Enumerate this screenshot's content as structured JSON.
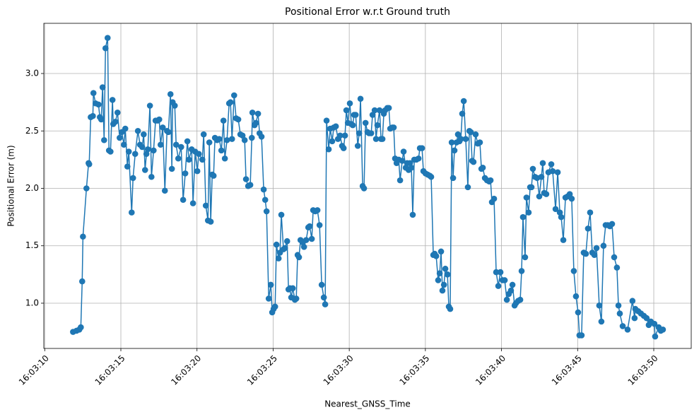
{
  "chart_data": {
    "type": "line",
    "title": "Positional Error w.r.t Ground truth",
    "x_label": "Nearest_GNSS_Time",
    "y_label": "Positional Error (m)",
    "color": "#1f77b4",
    "grid": true,
    "xlim": [
      "16:03:09.94",
      "16:03:52.46"
    ],
    "xticks": [
      "16:03:10",
      "16:03:15",
      "16:03:20",
      "16:03:25",
      "16:03:30",
      "16:03:35",
      "16:03:40",
      "16:03:45",
      "16:03:50"
    ],
    "ylim": [
      0.606,
      3.437
    ],
    "yticks": [
      {
        "value": 1,
        "label": "1.0"
      },
      {
        "value": 1.5,
        "label": "1.5"
      },
      {
        "value": 2,
        "label": "2.0"
      },
      {
        "value": 2.5,
        "label": "2.5"
      },
      {
        "value": 3,
        "label": "3.0"
      }
    ],
    "x": [
      "16:03:11.86",
      "16:03:12.09",
      "16:03:12.27",
      "16:03:12.37",
      "16:03:12.46",
      "16:03:12.51",
      "16:03:12.74",
      "16:03:12.88",
      "16:03:12.92",
      "16:03:13.02",
      "16:03:13.16",
      "16:03:13.20",
      "16:03:13.34",
      "16:03:13.53",
      "16:03:13.62",
      "16:03:13.71",
      "16:03:13.80",
      "16:03:13.90",
      "16:03:13.99",
      "16:03:14.13",
      "16:03:14.22",
      "16:03:14.32",
      "16:03:14.45",
      "16:03:14.50",
      "16:03:14.64",
      "16:03:14.78",
      "16:03:14.92",
      "16:03:15.06",
      "16:03:15.20",
      "16:03:15.29",
      "16:03:15.43",
      "16:03:15.52",
      "16:03:15.71",
      "16:03:15.80",
      "16:03:15.94",
      "16:03:16.12",
      "16:03:16.26",
      "16:03:16.40",
      "16:03:16.50",
      "16:03:16.59",
      "16:03:16.68",
      "16:03:16.77",
      "16:03:16.91",
      "16:03:17.01",
      "16:03:17.15",
      "16:03:17.28",
      "16:03:17.42",
      "16:03:17.52",
      "16:03:17.61",
      "16:03:17.75",
      "16:03:17.89",
      "16:03:18.03",
      "16:03:18.12",
      "16:03:18.26",
      "16:03:18.35",
      "16:03:18.40",
      "16:03:18.54",
      "16:03:18.63",
      "16:03:18.77",
      "16:03:18.96",
      "16:03:19.09",
      "16:03:19.23",
      "16:03:19.37",
      "16:03:19.47",
      "16:03:19.65",
      "16:03:19.74",
      "16:03:19.88",
      "16:03:20.02",
      "16:03:20.12",
      "16:03:20.35",
      "16:03:20.44",
      "16:03:20.58",
      "16:03:20.72",
      "16:03:20.81",
      "16:03:20.90",
      "16:03:21.00",
      "16:03:21.09",
      "16:03:21.18",
      "16:03:21.32",
      "16:03:21.46",
      "16:03:21.60",
      "16:03:21.74",
      "16:03:21.83",
      "16:03:21.97",
      "16:03:22.11",
      "16:03:22.20",
      "16:03:22.30",
      "16:03:22.44",
      "16:03:22.57",
      "16:03:22.71",
      "16:03:22.85",
      "16:03:22.99",
      "16:03:23.13",
      "16:03:23.22",
      "16:03:23.36",
      "16:03:23.50",
      "16:03:23.60",
      "16:03:23.64",
      "16:03:23.78",
      "16:03:23.87",
      "16:03:24.01",
      "16:03:24.11",
      "16:03:24.24",
      "16:03:24.38",
      "16:03:24.48",
      "16:03:24.57",
      "16:03:24.71",
      "16:03:24.85",
      "16:03:24.94",
      "16:03:25.03",
      "16:03:25.13",
      "16:03:25.22",
      "16:03:25.36",
      "16:03:25.45",
      "16:03:25.54",
      "16:03:25.68",
      "16:03:25.78",
      "16:03:25.92",
      "16:03:26.01",
      "16:03:26.10",
      "16:03:26.19",
      "16:03:26.29",
      "16:03:26.43",
      "16:03:26.52",
      "16:03:26.61",
      "16:03:26.70",
      "16:03:26.80",
      "16:03:26.94",
      "16:03:27.03",
      "16:03:27.17",
      "16:03:27.31",
      "16:03:27.40",
      "16:03:27.54",
      "16:03:27.63",
      "16:03:27.77",
      "16:03:27.91",
      "16:03:28.05",
      "16:03:28.19",
      "16:03:28.33",
      "16:03:28.42",
      "16:03:28.51",
      "16:03:28.65",
      "16:03:28.75",
      "16:03:28.88",
      "16:03:28.98",
      "16:03:29.12",
      "16:03:29.26",
      "16:03:29.40",
      "16:03:29.53",
      "16:03:29.63",
      "16:03:29.72",
      "16:03:29.81",
      "16:03:29.91",
      "16:03:30.04",
      "16:03:30.14",
      "16:03:30.23",
      "16:03:30.32",
      "16:03:30.42",
      "16:03:30.56",
      "16:03:30.65",
      "16:03:30.74",
      "16:03:30.88",
      "16:03:30.97",
      "16:03:31.07",
      "16:03:31.20",
      "16:03:31.30",
      "16:03:31.44",
      "16:03:31.53",
      "16:03:31.67",
      "16:03:31.76",
      "16:03:31.85",
      "16:03:31.99",
      "16:03:32.09",
      "16:03:32.18",
      "16:03:32.27",
      "16:03:32.36",
      "16:03:32.50",
      "16:03:32.60",
      "16:03:32.69",
      "16:03:32.83",
      "16:03:32.92",
      "16:03:33.01",
      "16:03:33.11",
      "16:03:33.25",
      "16:03:33.34",
      "16:03:33.48",
      "16:03:33.57",
      "16:03:33.71",
      "16:03:33.80",
      "16:03:33.90",
      "16:03:33.99",
      "16:03:34.08",
      "16:03:34.17",
      "16:03:34.27",
      "16:03:34.41",
      "16:03:34.55",
      "16:03:34.64",
      "16:03:34.78",
      "16:03:34.87",
      "16:03:35.01",
      "16:03:35.15",
      "16:03:35.29",
      "16:03:35.38",
      "16:03:35.52",
      "16:03:35.61",
      "16:03:35.71",
      "16:03:35.84",
      "16:03:35.94",
      "16:03:36.03",
      "16:03:36.12",
      "16:03:36.22",
      "16:03:36.31",
      "16:03:36.45",
      "16:03:36.54",
      "16:03:36.63",
      "16:03:36.73",
      "16:03:36.82",
      "16:03:36.91",
      "16:03:37.05",
      "16:03:37.14",
      "16:03:37.24",
      "16:03:37.33",
      "16:03:37.42",
      "16:03:37.52",
      "16:03:37.65",
      "16:03:37.79",
      "16:03:37.89",
      "16:03:37.98",
      "16:03:38.07",
      "16:03:38.16",
      "16:03:38.30",
      "16:03:38.44",
      "16:03:38.58",
      "16:03:38.68",
      "16:03:38.77",
      "16:03:38.91",
      "16:03:39.05",
      "16:03:39.19",
      "16:03:39.28",
      "16:03:39.37",
      "16:03:39.51",
      "16:03:39.65",
      "16:03:39.79",
      "16:03:39.93",
      "16:03:40.07",
      "16:03:40.21",
      "16:03:40.35",
      "16:03:40.48",
      "16:03:40.62",
      "16:03:40.72",
      "16:03:40.86",
      "16:03:40.95",
      "16:03:41.09",
      "16:03:41.23",
      "16:03:41.32",
      "16:03:41.41",
      "16:03:41.55",
      "16:03:41.64",
      "16:03:41.78",
      "16:03:41.88",
      "16:03:41.97",
      "16:03:42.06",
      "16:03:42.20",
      "16:03:42.34",
      "16:03:42.48",
      "16:03:42.62",
      "16:03:42.71",
      "16:03:42.80",
      "16:03:42.94",
      "16:03:43.08",
      "16:03:43.27",
      "16:03:43.36",
      "16:03:43.55",
      "16:03:43.69",
      "16:03:43.83",
      "16:03:43.92",
      "16:03:44.06",
      "16:03:44.20",
      "16:03:44.34",
      "16:03:44.48",
      "16:03:44.61",
      "16:03:44.75",
      "16:03:44.89",
      "16:03:45.03",
      "16:03:45.12",
      "16:03:45.26",
      "16:03:45.40",
      "16:03:45.54",
      "16:03:45.68",
      "16:03:45.82",
      "16:03:45.96",
      "16:03:46.10",
      "16:03:46.24",
      "16:03:46.42",
      "16:03:46.56",
      "16:03:46.70",
      "16:03:46.84",
      "16:03:46.98",
      "16:03:47.12",
      "16:03:47.26",
      "16:03:47.40",
      "16:03:47.58",
      "16:03:47.68",
      "16:03:47.77",
      "16:03:47.96",
      "16:03:48.28",
      "16:03:48.60",
      "16:03:48.74",
      "16:03:48.79",
      "16:03:48.98",
      "16:03:49.16",
      "16:03:49.35",
      "16:03:49.53",
      "16:03:49.67",
      "16:03:49.81",
      "16:03:50.04",
      "16:03:50.09",
      "16:03:50.32",
      "16:03:50.46",
      "16:03:50.60"
    ],
    "values": [
      0.75,
      0.76,
      0.77,
      0.79,
      1.19,
      1.58,
      2.0,
      2.22,
      2.21,
      2.62,
      2.63,
      2.83,
      2.74,
      2.73,
      2.62,
      2.6,
      2.88,
      2.42,
      3.22,
      3.31,
      2.33,
      2.32,
      2.77,
      2.56,
      2.58,
      2.66,
      2.44,
      2.49,
      2.38,
      2.52,
      2.19,
      2.32,
      1.79,
      2.09,
      2.3,
      2.5,
      2.38,
      2.36,
      2.47,
      2.16,
      2.3,
      2.34,
      2.72,
      2.1,
      2.33,
      2.59,
      2.59,
      2.6,
      2.38,
      2.53,
      1.98,
      2.5,
      2.49,
      2.82,
      2.17,
      2.75,
      2.72,
      2.38,
      2.26,
      2.36,
      1.9,
      2.13,
      2.41,
      2.25,
      2.34,
      1.87,
      2.32,
      2.15,
      2.3,
      2.25,
      2.47,
      1.85,
      1.72,
      2.4,
      1.71,
      2.12,
      2.11,
      2.44,
      2.42,
      2.43,
      2.33,
      2.59,
      2.26,
      2.42,
      2.74,
      2.75,
      2.43,
      2.81,
      2.61,
      2.6,
      2.47,
      2.46,
      2.42,
      2.08,
      2.02,
      2.03,
      2.44,
      2.66,
      2.55,
      2.57,
      2.65,
      2.48,
      2.45,
      1.99,
      1.9,
      1.8,
      1.04,
      1.16,
      0.92,
      0.95,
      0.97,
      1.51,
      1.39,
      1.44,
      1.77,
      1.47,
      1.48,
      1.54,
      1.12,
      1.13,
      1.05,
      1.13,
      1.03,
      1.04,
      1.42,
      1.4,
      1.55,
      1.53,
      1.49,
      1.55,
      1.66,
      1.67,
      1.56,
      1.81,
      1.8,
      1.81,
      1.68,
      1.16,
      1.05,
      0.99,
      2.59,
      2.34,
      2.52,
      2.41,
      2.53,
      2.54,
      2.43,
      2.46,
      2.37,
      2.35,
      2.46,
      2.68,
      2.57,
      2.74,
      2.56,
      2.55,
      2.64,
      2.64,
      2.37,
      2.48,
      2.78,
      2.02,
      2.0,
      2.57,
      2.49,
      2.48,
      2.48,
      2.64,
      2.68,
      2.43,
      2.55,
      2.68,
      2.43,
      2.43,
      2.65,
      2.68,
      2.7,
      2.7,
      2.52,
      2.53,
      2.53,
      2.26,
      2.22,
      2.25,
      2.07,
      2.24,
      2.32,
      2.18,
      2.22,
      2.16,
      2.22,
      2.18,
      1.77,
      2.25,
      2.25,
      2.26,
      2.35,
      2.35,
      2.15,
      2.13,
      2.12,
      2.11,
      2.1,
      1.42,
      1.43,
      1.41,
      1.2,
      1.26,
      1.45,
      1.11,
      1.16,
      1.3,
      1.25,
      0.97,
      0.95,
      2.4,
      2.09,
      2.33,
      2.4,
      2.47,
      2.41,
      2.43,
      2.65,
      2.76,
      2.43,
      2.01,
      2.5,
      2.49,
      2.24,
      2.23,
      2.47,
      2.39,
      2.4,
      2.17,
      2.18,
      2.09,
      2.07,
      2.06,
      2.07,
      1.88,
      1.91,
      1.27,
      1.15,
      1.27,
      1.2,
      1.2,
      1.03,
      1.08,
      1.11,
      1.16,
      0.98,
      1.0,
      1.02,
      1.03,
      1.28,
      1.75,
      1.4,
      1.92,
      1.79,
      2.01,
      2.01,
      2.17,
      2.1,
      2.09,
      1.93,
      2.1,
      2.22,
      1.96,
      1.95,
      2.14,
      2.21,
      2.15,
      1.82,
      2.14,
      1.79,
      1.75,
      1.55,
      1.92,
      1.93,
      1.95,
      1.91,
      1.28,
      1.06,
      0.92,
      0.72,
      0.72,
      1.44,
      1.43,
      1.65,
      1.79,
      1.44,
      1.42,
      1.48,
      0.98,
      0.84,
      1.5,
      1.68,
      1.68,
      1.67,
      1.69,
      1.4,
      1.31,
      0.98,
      0.91,
      0.8,
      0.77,
      1.02,
      0.87,
      0.95,
      0.93,
      0.91,
      0.89,
      0.87,
      0.81,
      0.84,
      0.82,
      0.71,
      0.79,
      0.76,
      0.77
    ]
  }
}
